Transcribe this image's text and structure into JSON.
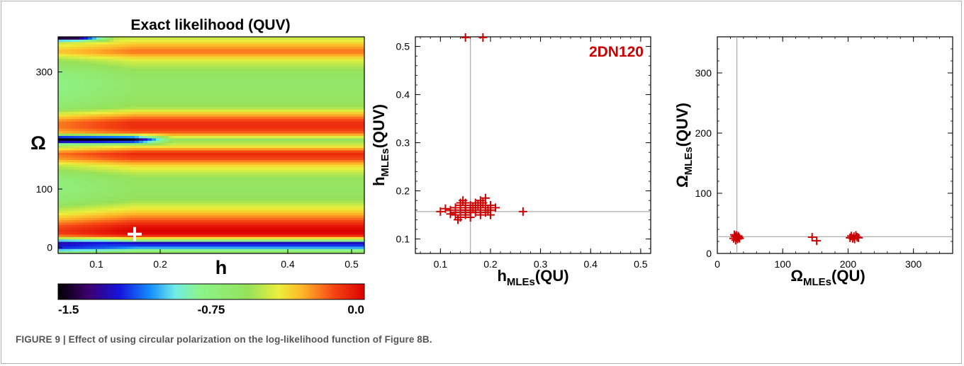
{
  "caption": "FIGURE 9 | Effect of using circular polarization on the log-likelihood function of Figure 8B.",
  "colors": {
    "marker": "#cc0000",
    "axis": "#000000",
    "guide": "#999999"
  },
  "colorbar": {
    "ticks": [
      {
        "value": -1.5,
        "label": "-1.5"
      },
      {
        "value": -0.75,
        "label": "-0.75"
      },
      {
        "value": 0.0,
        "label": "0.0"
      }
    ],
    "range": [
      -1.5,
      0.0
    ]
  },
  "chart_data": [
    {
      "type": "heatmap",
      "title": "Exact likelihood (QUV)",
      "xlabel": "h",
      "ylabel": "Ω",
      "xlim": [
        0.04,
        0.52
      ],
      "ylim": [
        -10,
        360
      ],
      "xticks": [
        {
          "value": 0.1,
          "label": "0.1"
        },
        {
          "value": 0.2,
          "label": "0.2"
        },
        {
          "value": 0.4,
          "label": "0.4"
        },
        {
          "value": 0.5,
          "label": "0.5"
        }
      ],
      "yticks": [
        {
          "value": 0,
          "label": "0"
        },
        {
          "value": 100,
          "label": "100"
        },
        {
          "value": 300,
          "label": "300"
        }
      ],
      "colorscale": "rainbow",
      "value_range": [
        -1.5,
        0.0
      ],
      "omega_profile": [
        {
          "omega": -10,
          "value": -0.5
        },
        {
          "omega": 0,
          "value": -1.0
        },
        {
          "omega": 8,
          "value": -1.3
        },
        {
          "omega": 15,
          "value": -0.5
        },
        {
          "omega": 22,
          "value": -0.02
        },
        {
          "omega": 30,
          "value": 0.0
        },
        {
          "omega": 38,
          "value": -0.05
        },
        {
          "omega": 50,
          "value": -0.2
        },
        {
          "omega": 62,
          "value": -0.35
        },
        {
          "omega": 80,
          "value": -0.55
        },
        {
          "omega": 100,
          "value": -0.62
        },
        {
          "omega": 120,
          "value": -0.58
        },
        {
          "omega": 140,
          "value": -0.38
        },
        {
          "omega": 152,
          "value": -0.15
        },
        {
          "omega": 162,
          "value": -0.08
        },
        {
          "omega": 175,
          "value": -0.45
        },
        {
          "omega": 185,
          "value": -0.6
        },
        {
          "omega": 196,
          "value": -0.2
        },
        {
          "omega": 205,
          "value": -0.1
        },
        {
          "omega": 215,
          "value": -0.1
        },
        {
          "omega": 225,
          "value": -0.25
        },
        {
          "omega": 240,
          "value": -0.55
        },
        {
          "omega": 260,
          "value": -0.62
        },
        {
          "omega": 280,
          "value": -0.65
        },
        {
          "omega": 300,
          "value": -0.6
        },
        {
          "omega": 320,
          "value": -0.45
        },
        {
          "omega": 335,
          "value": -0.2
        },
        {
          "omega": 345,
          "value": -0.3
        },
        {
          "omega": 360,
          "value": -0.5
        }
      ],
      "low_h_features": [
        {
          "omega": 185,
          "h_end": 0.19,
          "value": -1.5
        },
        {
          "omega": 360,
          "h_end": 0.1,
          "value": -1.5
        },
        {
          "omega": 5,
          "h_end": 0.14,
          "value": -1.1
        }
      ],
      "marker": {
        "h": 0.16,
        "omega": 23
      }
    },
    {
      "type": "scatter",
      "xlabel": "h_MLEs(QU)",
      "ylabel": "h_MLEs(QUV)",
      "annotation": "2DN120",
      "xlim": [
        0.05,
        0.52
      ],
      "ylim": [
        0.07,
        0.52
      ],
      "xticks": [
        0.1,
        0.2,
        0.3,
        0.4,
        0.5
      ],
      "yticks": [
        0.1,
        0.2,
        0.3,
        0.4,
        0.5
      ],
      "guides": {
        "x": 0.16,
        "y": 0.157
      },
      "marker": "+",
      "points": [
        [
          0.12,
          0.16
        ],
        [
          0.13,
          0.155
        ],
        [
          0.13,
          0.165
        ],
        [
          0.13,
          0.15
        ],
        [
          0.14,
          0.16
        ],
        [
          0.14,
          0.145
        ],
        [
          0.14,
          0.17
        ],
        [
          0.14,
          0.175
        ],
        [
          0.15,
          0.16
        ],
        [
          0.15,
          0.15
        ],
        [
          0.15,
          0.165
        ],
        [
          0.15,
          0.175
        ],
        [
          0.15,
          0.155
        ],
        [
          0.16,
          0.16
        ],
        [
          0.16,
          0.17
        ],
        [
          0.16,
          0.155
        ],
        [
          0.16,
          0.145
        ],
        [
          0.17,
          0.165
        ],
        [
          0.17,
          0.175
        ],
        [
          0.17,
          0.155
        ],
        [
          0.18,
          0.16
        ],
        [
          0.18,
          0.17
        ],
        [
          0.18,
          0.18
        ],
        [
          0.18,
          0.15
        ],
        [
          0.19,
          0.165
        ],
        [
          0.19,
          0.185
        ],
        [
          0.19,
          0.155
        ],
        [
          0.2,
          0.17
        ],
        [
          0.2,
          0.16
        ],
        [
          0.2,
          0.15
        ],
        [
          0.21,
          0.165
        ],
        [
          0.1,
          0.157
        ],
        [
          0.11,
          0.163
        ],
        [
          0.12,
          0.152
        ],
        [
          0.135,
          0.14
        ],
        [
          0.145,
          0.18
        ],
        [
          0.165,
          0.165
        ],
        [
          0.175,
          0.17
        ],
        [
          0.185,
          0.175
        ],
        [
          0.195,
          0.16
        ],
        [
          0.265,
          0.157
        ],
        [
          0.15,
          0.52
        ],
        [
          0.185,
          0.52
        ]
      ]
    },
    {
      "type": "scatter",
      "xlabel": "Ω_MLEs(QU)",
      "ylabel": "Ω_MLEs(QUV)",
      "xlim": [
        0,
        360
      ],
      "ylim": [
        0,
        360
      ],
      "xticks": [
        0,
        100,
        200,
        300
      ],
      "yticks": [
        0,
        100,
        200,
        300
      ],
      "guides": {
        "x": 30,
        "y": 28
      },
      "marker": "+",
      "points": [
        [
          25,
          25
        ],
        [
          27,
          28
        ],
        [
          28,
          22
        ],
        [
          29,
          30
        ],
        [
          30,
          26
        ],
        [
          31,
          24
        ],
        [
          32,
          29
        ],
        [
          33,
          27
        ],
        [
          26,
          31
        ],
        [
          34,
          25
        ],
        [
          145,
          27
        ],
        [
          152,
          21
        ],
        [
          203,
          26
        ],
        [
          205,
          29
        ],
        [
          207,
          25
        ],
        [
          209,
          28
        ],
        [
          210,
          24
        ],
        [
          212,
          30
        ],
        [
          214,
          27
        ],
        [
          216,
          26
        ]
      ]
    }
  ]
}
